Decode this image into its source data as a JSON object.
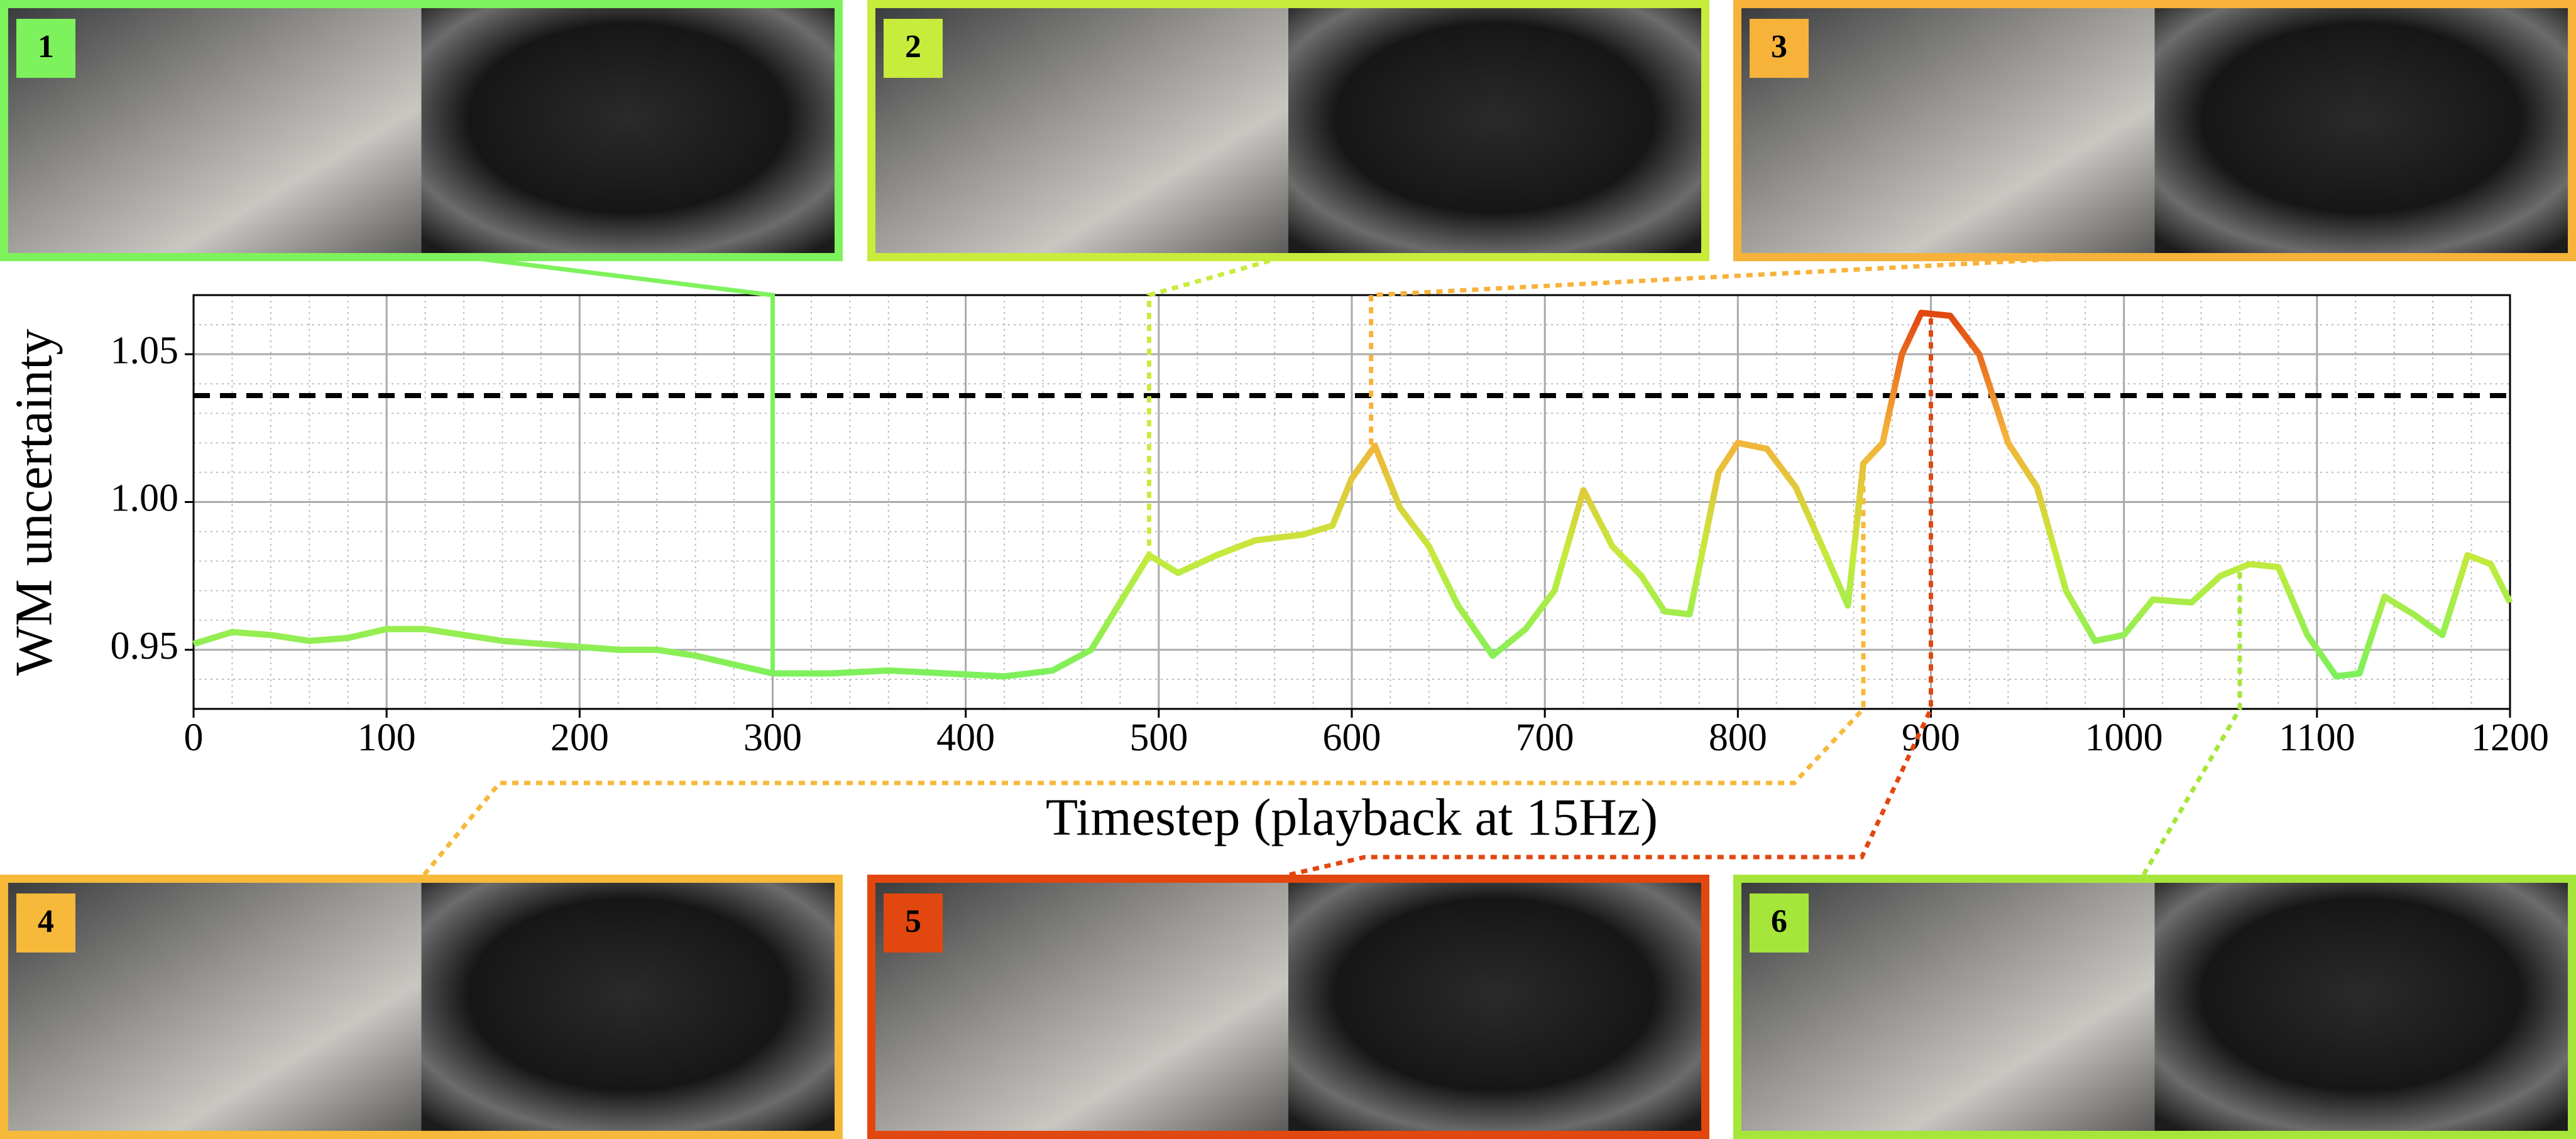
{
  "chart_data": {
    "type": "line",
    "xlabel": "Timestep (playback at 15Hz)",
    "ylabel": "WM uncertainty",
    "x": [
      0,
      20,
      40,
      60,
      80,
      100,
      120,
      140,
      160,
      180,
      200,
      220,
      240,
      260,
      280,
      300,
      330,
      360,
      390,
      420,
      445,
      465,
      480,
      495,
      510,
      530,
      550,
      575,
      590,
      600,
      612,
      625,
      640,
      655,
      673,
      690,
      705,
      720,
      735,
      750,
      762,
      775,
      790,
      800,
      815,
      830,
      845,
      857,
      865,
      875,
      885,
      895,
      910,
      925,
      940,
      955,
      970,
      985,
      1000,
      1015,
      1035,
      1050,
      1065,
      1080,
      1095,
      1110,
      1122,
      1135,
      1150,
      1165,
      1178,
      1190,
      1200
    ],
    "values": [
      0.952,
      0.956,
      0.955,
      0.953,
      0.954,
      0.957,
      0.957,
      0.955,
      0.953,
      0.952,
      0.951,
      0.95,
      0.95,
      0.948,
      0.945,
      0.942,
      0.942,
      0.943,
      0.942,
      0.941,
      0.943,
      0.95,
      0.966,
      0.982,
      0.976,
      0.982,
      0.987,
      0.989,
      0.992,
      1.008,
      1.019,
      0.998,
      0.985,
      0.965,
      0.948,
      0.957,
      0.97,
      1.004,
      0.985,
      0.975,
      0.963,
      0.962,
      1.01,
      1.02,
      1.018,
      1.005,
      0.983,
      0.965,
      1.013,
      1.02,
      1.05,
      1.064,
      1.063,
      1.05,
      1.02,
      1.005,
      0.97,
      0.953,
      0.955,
      0.967,
      0.966,
      0.975,
      0.979,
      0.978,
      0.955,
      0.941,
      0.942,
      0.968,
      0.962,
      0.955,
      0.982,
      0.979,
      0.966
    ],
    "colormap": [
      "#7cf05c",
      "#c5ea3c",
      "#f5b13a",
      "#e2470f"
    ],
    "threshold": 1.036,
    "xlim": [
      0,
      1200
    ],
    "ylim": [
      0.93,
      1.07
    ],
    "xticks": [
      0,
      100,
      200,
      300,
      400,
      500,
      600,
      700,
      800,
      900,
      1000,
      1100,
      1200
    ],
    "yticks": [
      0.95,
      {
        "value": 1,
        "label": "1.00"
      },
      1.05
    ],
    "minor_xticks": [
      20,
      40,
      60,
      80,
      120,
      140,
      160,
      180,
      220,
      240,
      260,
      280,
      320,
      340,
      360,
      380,
      420,
      440,
      460,
      480,
      520,
      540,
      560,
      580,
      620,
      640,
      660,
      680,
      720,
      740,
      760,
      780,
      820,
      840,
      860,
      880,
      920,
      940,
      960,
      980,
      1020,
      1040,
      1060,
      1080,
      1120,
      1140,
      1160,
      1180
    ],
    "minor_yticks": [
      0.94,
      0.96,
      0.97,
      0.98,
      0.99,
      1.01,
      1.02,
      1.03,
      1.04,
      1.06
    ],
    "grid": true,
    "panels": [
      {
        "label": "1",
        "timestep": 300,
        "color": "#7ef25c"
      },
      {
        "label": "2",
        "timestep": 495,
        "color": "#c8ec3c"
      },
      {
        "label": "3",
        "timestep": 610,
        "color": "#f7b23a"
      },
      {
        "label": "4",
        "timestep": 865,
        "color": "#f6b93a"
      },
      {
        "label": "5",
        "timestep": 900,
        "color": "#e2470f"
      },
      {
        "label": "6",
        "timestep": 1060,
        "color": "#a6e63a"
      }
    ]
  }
}
